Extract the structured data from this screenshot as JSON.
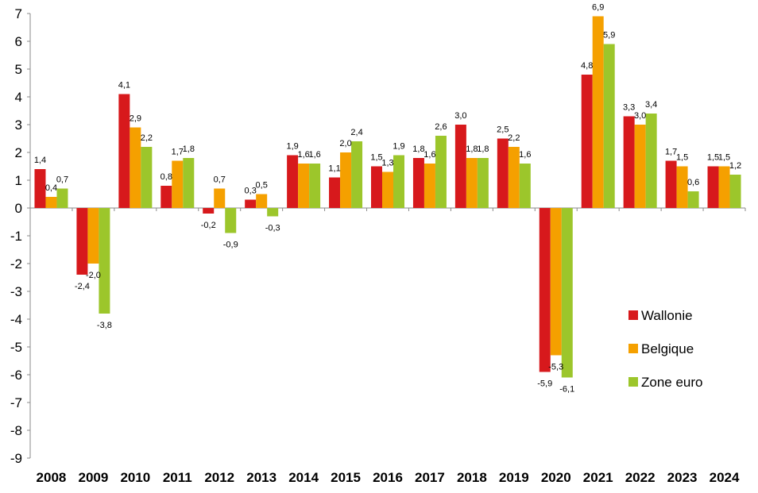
{
  "chart_data": {
    "type": "bar",
    "categories": [
      "2008",
      "2009",
      "2010",
      "2011",
      "2012",
      "2013",
      "2014",
      "2015",
      "2016",
      "2017",
      "2018",
      "2019",
      "2020",
      "2021",
      "2022",
      "2023",
      "2024"
    ],
    "series": [
      {
        "name": "Wallonie",
        "color": "#d7191c",
        "values": [
          1.4,
          -2.4,
          4.1,
          0.8,
          -0.2,
          0.3,
          1.9,
          1.1,
          1.5,
          1.8,
          3.0,
          2.5,
          -5.9,
          4.8,
          3.3,
          1.7,
          1.5
        ],
        "labels": [
          "1,4",
          "-2,4",
          "4,1",
          "0,8",
          "-0,2",
          "0,3",
          "1,9",
          "1,1",
          "1,5",
          "1,8",
          "3,0",
          "2,5",
          "-5,9",
          "4,8",
          "3,3",
          "1,7",
          "1,5"
        ]
      },
      {
        "name": "Belgique",
        "color": "#f5a000",
        "values": [
          0.4,
          -2.0,
          2.9,
          1.7,
          0.7,
          0.5,
          1.6,
          2.0,
          1.3,
          1.6,
          1.8,
          2.2,
          -5.3,
          6.9,
          3.0,
          1.5,
          1.5
        ],
        "labels": [
          "0,4",
          "-2,0",
          "2,9",
          "1,7",
          "0,7",
          "0,5",
          "1,6",
          "2,0",
          "1,3",
          "1,6",
          "1,8",
          "2,2",
          "-5,3",
          "6,9",
          "3,0",
          "1,5",
          "1,5"
        ]
      },
      {
        "name": "Zone euro",
        "color": "#9cc62b",
        "values": [
          0.7,
          -3.8,
          2.2,
          1.8,
          -0.9,
          -0.3,
          1.6,
          2.4,
          1.9,
          2.6,
          1.8,
          1.6,
          -6.1,
          5.9,
          3.4,
          0.6,
          1.2
        ],
        "labels": [
          "0,7",
          "-3,8",
          "2,2",
          "1,8",
          "-0,9",
          "-0,3",
          "1,6",
          "2,4",
          "1,9",
          "2,6",
          "1,8",
          "1,6",
          "-6,1",
          "5,9",
          "3,4",
          "0,6",
          "1,2"
        ]
      }
    ],
    "ylim": [
      -9,
      7
    ],
    "yticks": [
      7,
      6,
      5,
      4,
      3,
      2,
      1,
      0,
      -1,
      -2,
      -3,
      -4,
      -5,
      -6,
      -7,
      -8,
      -9
    ],
    "ytick_labels": [
      "7",
      "6",
      "5",
      "4",
      "3",
      "2",
      "1",
      "0",
      "-1",
      "-2",
      "-3",
      "-4",
      "-5",
      "-6",
      "-7",
      "-8",
      "-9"
    ],
    "legend": {
      "position": "right",
      "entries": [
        "Wallonie",
        "Belgique",
        "Zone euro"
      ]
    },
    "grid": false
  }
}
